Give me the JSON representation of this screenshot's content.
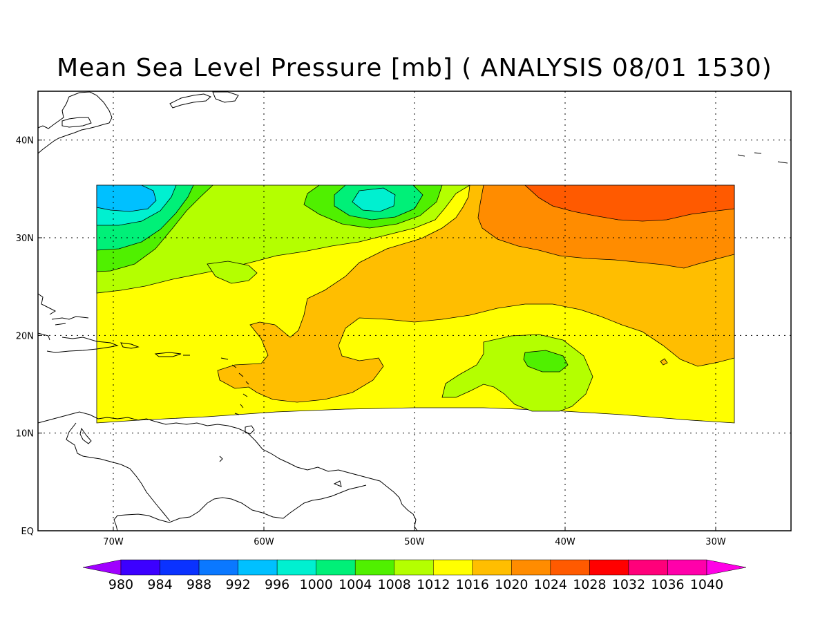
{
  "title": "Mean Sea Level Pressure [mb] ( ANALYSIS 08/01 1530)",
  "map": {
    "lon_range": [
      -75,
      -25
    ],
    "lat_range": [
      0,
      45
    ],
    "lon_ticks": [
      {
        "value": -70,
        "label": "70W"
      },
      {
        "value": -60,
        "label": "60W"
      },
      {
        "value": -50,
        "label": "50W"
      },
      {
        "value": -40,
        "label": "40W"
      },
      {
        "value": -30,
        "label": "30W"
      }
    ],
    "lat_ticks": [
      {
        "value": 0,
        "label": "EQ"
      },
      {
        "value": 10,
        "label": "10N"
      },
      {
        "value": 20,
        "label": "20N"
      },
      {
        "value": 30,
        "label": "30N"
      },
      {
        "value": 40,
        "label": "40N"
      }
    ],
    "data_domain": {
      "lon": [
        -71,
        -29
      ],
      "lat": [
        11,
        35.5
      ]
    },
    "pressure_features": [
      {
        "type": "low",
        "name": "northwest low",
        "lon": -69,
        "lat": 34,
        "value_band": "996-1000"
      },
      {
        "type": "low",
        "name": "central north low",
        "lon": -52.5,
        "lat": 34,
        "value_band": "1000-1004"
      },
      {
        "type": "low",
        "name": "eastern trough",
        "lon": -41,
        "lat": 17.5,
        "value_band": "1008-1012"
      },
      {
        "type": "high",
        "name": "northeast high",
        "lon": -37,
        "lat": 34,
        "value_band": "1024-1028"
      }
    ]
  },
  "colorbar": {
    "labels": [
      "980",
      "984",
      "988",
      "992",
      "996",
      "1000",
      "1004",
      "1008",
      "1012",
      "1016",
      "1020",
      "1024",
      "1028",
      "1032",
      "1036",
      "1040"
    ],
    "colors": [
      "#a000ff",
      "#3c00ff",
      "#0a32ff",
      "#0a78ff",
      "#00c0ff",
      "#00f0d0",
      "#00f078",
      "#50f000",
      "#b4ff00",
      "#ffff00",
      "#ffbe00",
      "#ff8c00",
      "#ff5a00",
      "#ff0000",
      "#ff007a",
      "#ff00aa",
      "#ff00e6"
    ]
  },
  "legend_colors": {
    "c996": "#00c0ff",
    "c1000": "#00f0d0",
    "c1004": "#00f078",
    "c1008": "#50f000",
    "c1012": "#b4ff00",
    "c1016": "#ffff00",
    "c1020": "#ffbe00",
    "c1024": "#ff8c00",
    "c1028": "#ff5a00"
  }
}
